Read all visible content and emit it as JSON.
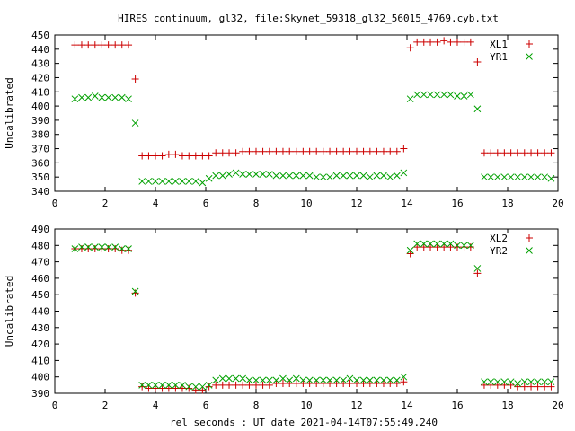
{
  "title": "HIRES continuum, gl32, file:Skynet_59318_gl32_56015_4769.cyb.txt",
  "xlabel": "rel seconds : UT date 2021-04-14T07:55:49.240",
  "colors": {
    "plus": "#cc0000",
    "cross": "#00a000",
    "axis": "#000000"
  },
  "chart_data": [
    {
      "type": "scatter",
      "ylabel": "Uncalibrated",
      "xlim": [
        0,
        20
      ],
      "ylim": [
        340,
        450
      ],
      "xticks": [
        0,
        2,
        4,
        6,
        8,
        10,
        12,
        14,
        16,
        18,
        20
      ],
      "yticks": [
        340,
        350,
        360,
        370,
        380,
        390,
        400,
        410,
        420,
        430,
        440,
        450
      ],
      "legend": "top-right",
      "series": [
        {
          "name": "XL1",
          "marker": "plus",
          "x": [
            0.8,
            1.07,
            1.33,
            1.6,
            1.87,
            2.13,
            2.4,
            2.67,
            2.93,
            3.2,
            3.47,
            3.73,
            4.0,
            4.27,
            4.53,
            4.8,
            5.07,
            5.33,
            5.6,
            5.87,
            6.13,
            6.4,
            6.67,
            6.93,
            7.2,
            7.47,
            7.73,
            8.0,
            8.27,
            8.53,
            8.8,
            9.07,
            9.33,
            9.6,
            9.87,
            10.13,
            10.4,
            10.67,
            10.93,
            11.2,
            11.47,
            11.73,
            12.0,
            12.27,
            12.53,
            12.8,
            13.07,
            13.33,
            13.6,
            13.87,
            14.13,
            14.4,
            14.67,
            14.93,
            15.2,
            15.47,
            15.73,
            16.0,
            16.27,
            16.53,
            16.8,
            17.07,
            17.33,
            17.6,
            17.87,
            18.13,
            18.4,
            18.67,
            18.93,
            19.2,
            19.47,
            19.73
          ],
          "y": [
            443,
            443,
            443,
            443,
            443,
            443,
            443,
            443,
            443,
            419,
            365,
            365,
            365,
            365,
            366,
            366,
            365,
            365,
            365,
            365,
            365,
            367,
            367,
            367,
            367,
            368,
            368,
            368,
            368,
            368,
            368,
            368,
            368,
            368,
            368,
            368,
            368,
            368,
            368,
            368,
            368,
            368,
            368,
            368,
            368,
            368,
            368,
            368,
            368,
            370,
            441,
            445,
            445,
            445,
            445,
            446,
            445,
            445,
            445,
            445,
            431,
            367,
            367,
            367,
            367,
            367,
            367,
            367,
            367,
            367,
            367,
            367
          ],
          "x_note": ""
        },
        {
          "name": "YR1",
          "marker": "cross",
          "x": [
            0.8,
            1.07,
            1.33,
            1.6,
            1.87,
            2.13,
            2.4,
            2.67,
            2.93,
            3.2,
            3.47,
            3.73,
            4.0,
            4.27,
            4.53,
            4.8,
            5.07,
            5.33,
            5.6,
            5.87,
            6.13,
            6.4,
            6.67,
            6.93,
            7.2,
            7.47,
            7.73,
            8.0,
            8.27,
            8.53,
            8.8,
            9.07,
            9.33,
            9.6,
            9.87,
            10.13,
            10.4,
            10.67,
            10.93,
            11.2,
            11.47,
            11.73,
            12.0,
            12.27,
            12.53,
            12.8,
            13.07,
            13.33,
            13.6,
            13.87,
            14.13,
            14.4,
            14.67,
            14.93,
            15.2,
            15.47,
            15.73,
            16.0,
            16.27,
            16.53,
            16.8,
            17.07,
            17.33,
            17.6,
            17.87,
            18.13,
            18.4,
            18.67,
            18.93,
            19.2,
            19.47,
            19.73
          ],
          "y": [
            405,
            406,
            406,
            407,
            406,
            406,
            406,
            406,
            405,
            388,
            347,
            347,
            347,
            347,
            347,
            347,
            347,
            347,
            347,
            346,
            349,
            351,
            351,
            352,
            353,
            352,
            352,
            352,
            352,
            352,
            351,
            351,
            351,
            351,
            351,
            351,
            350,
            350,
            350,
            351,
            351,
            351,
            351,
            351,
            350,
            351,
            351,
            350,
            351,
            353,
            405,
            408,
            408,
            408,
            408,
            408,
            408,
            407,
            407,
            408,
            398,
            350,
            350,
            350,
            350,
            350,
            350,
            350,
            350,
            350,
            350,
            349
          ]
        }
      ]
    },
    {
      "type": "scatter",
      "ylabel": "Uncalibrated",
      "xlim": [
        0,
        20
      ],
      "ylim": [
        390,
        490
      ],
      "xticks": [
        0,
        2,
        4,
        6,
        8,
        10,
        12,
        14,
        16,
        18,
        20
      ],
      "yticks": [
        390,
        400,
        410,
        420,
        430,
        440,
        450,
        460,
        470,
        480,
        490
      ],
      "legend": "top-right",
      "series": [
        {
          "name": "XL2",
          "marker": "plus",
          "x": [
            0.8,
            1.07,
            1.33,
            1.6,
            1.87,
            2.13,
            2.4,
            2.67,
            2.93,
            3.2,
            3.47,
            3.73,
            4.0,
            4.27,
            4.53,
            4.8,
            5.07,
            5.33,
            5.6,
            5.87,
            6.13,
            6.4,
            6.67,
            6.93,
            7.2,
            7.47,
            7.73,
            8.0,
            8.27,
            8.53,
            8.8,
            9.07,
            9.33,
            9.6,
            9.87,
            10.13,
            10.4,
            10.67,
            10.93,
            11.2,
            11.47,
            11.73,
            12.0,
            12.27,
            12.53,
            12.8,
            13.07,
            13.33,
            13.6,
            13.87,
            14.13,
            14.4,
            14.67,
            14.93,
            15.2,
            15.47,
            15.73,
            16.0,
            16.27,
            16.53,
            16.8,
            17.07,
            17.33,
            17.6,
            17.87,
            18.13,
            18.4,
            18.67,
            18.93,
            19.2,
            19.47,
            19.73
          ],
          "y": [
            478,
            478,
            478,
            478,
            478,
            478,
            478,
            477,
            477,
            451,
            394,
            393,
            393,
            393,
            393,
            393,
            393,
            393,
            392,
            392,
            394,
            395,
            395,
            395,
            395,
            395,
            395,
            395,
            395,
            395,
            396,
            396,
            396,
            396,
            396,
            396,
            396,
            396,
            396,
            396,
            396,
            396,
            396,
            396,
            396,
            396,
            396,
            396,
            396,
            397,
            475,
            479,
            479,
            479,
            479,
            479,
            479,
            479,
            479,
            479,
            463,
            395,
            395,
            395,
            395,
            395,
            394,
            394,
            394,
            394,
            394,
            394
          ]
        },
        {
          "name": "YR2",
          "marker": "cross",
          "x": [
            0.8,
            1.07,
            1.33,
            1.6,
            1.87,
            2.13,
            2.4,
            2.67,
            2.93,
            3.2,
            3.47,
            3.73,
            4.0,
            4.27,
            4.53,
            4.8,
            5.07,
            5.33,
            5.6,
            5.87,
            6.13,
            6.4,
            6.67,
            6.93,
            7.2,
            7.47,
            7.73,
            8.0,
            8.27,
            8.53,
            8.8,
            9.07,
            9.33,
            9.6,
            9.87,
            10.13,
            10.4,
            10.67,
            10.93,
            11.2,
            11.47,
            11.73,
            12.0,
            12.27,
            12.53,
            12.8,
            13.07,
            13.33,
            13.6,
            13.87,
            14.13,
            14.4,
            14.67,
            14.93,
            15.2,
            15.47,
            15.73,
            16.0,
            16.27,
            16.53,
            16.8,
            17.07,
            17.33,
            17.6,
            17.87,
            18.13,
            18.4,
            18.67,
            18.93,
            19.2,
            19.47,
            19.73
          ],
          "y": [
            478,
            479,
            479,
            479,
            479,
            479,
            479,
            478,
            478,
            452,
            395,
            395,
            395,
            395,
            395,
            395,
            395,
            394,
            394,
            394,
            395,
            398,
            399,
            399,
            399,
            399,
            398,
            398,
            398,
            398,
            398,
            399,
            398,
            399,
            398,
            398,
            398,
            398,
            398,
            398,
            398,
            399,
            398,
            398,
            398,
            398,
            398,
            398,
            398,
            400,
            477,
            481,
            481,
            481,
            481,
            481,
            481,
            480,
            480,
            480,
            466,
            397,
            397,
            397,
            397,
            397,
            396,
            397,
            397,
            397,
            397,
            397
          ]
        }
      ]
    }
  ]
}
